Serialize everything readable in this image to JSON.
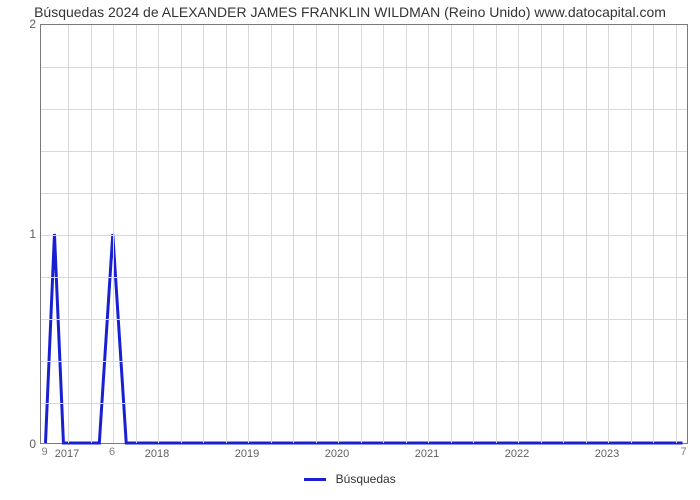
{
  "chart": {
    "type": "line",
    "title": "Búsquedas 2024 de ALEXANDER JAMES FRANKLIN WILDMAN (Reino Unido) www.datocapital.com",
    "title_fontsize": 14,
    "title_color": "#333333",
    "background_color": "#ffffff",
    "plot_border_color": "#7a7a7a",
    "grid_color": "#d9d9d9",
    "xlim": [
      2016.7,
      2023.9
    ],
    "ylim": [
      0,
      2
    ],
    "yticks": [
      0,
      1,
      2
    ],
    "minor_y_count": 4,
    "xticks": [
      2017,
      2018,
      2019,
      2020,
      2021,
      2022,
      2023
    ],
    "minor_x_per_major": 3,
    "series": {
      "name": "Búsquedas",
      "color": "#1920d2",
      "line_width": 3,
      "points": [
        {
          "x": 2016.75,
          "y": 0,
          "label": "9"
        },
        {
          "x": 2016.85,
          "y": 1,
          "label": ""
        },
        {
          "x": 2016.95,
          "y": 0,
          "label": ""
        },
        {
          "x": 2017.35,
          "y": 0,
          "label": ""
        },
        {
          "x": 2017.5,
          "y": 1,
          "label": "6"
        },
        {
          "x": 2017.65,
          "y": 0,
          "label": ""
        },
        {
          "x": 2023.85,
          "y": 0,
          "label": "7"
        }
      ]
    },
    "legend": {
      "label": "Búsquedas",
      "color": "#1920d2",
      "text_color": "#333333"
    },
    "axis_label_color": "#5f5f5f",
    "point_label_color": "#808080"
  }
}
